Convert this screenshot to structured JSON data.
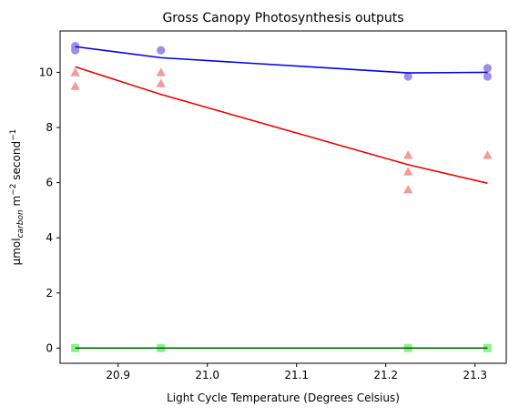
{
  "chart_data": {
    "type": "scatter",
    "title": "Gross Canopy Photosynthesis outputs",
    "xlabel": "Light Cycle Temperature (Degrees Celsius)",
    "ylabel": {
      "prefix": "μmol",
      "sub": "carbon",
      "middle": " m",
      "sup1": "−2",
      "middle2": " second",
      "sup2": "−1"
    },
    "xlim": [
      20.835,
      21.335
    ],
    "ylim": [
      -0.55,
      11.5
    ],
    "xticks": [
      20.9,
      21.0,
      21.1,
      21.2,
      21.3
    ],
    "xtick_labels": [
      "20.9",
      "21.0",
      "21.1",
      "21.2",
      "21.3"
    ],
    "yticks": [
      0,
      2,
      4,
      6,
      8,
      10
    ],
    "ytick_labels": [
      "0",
      "2",
      "4",
      "6",
      "8",
      "10"
    ],
    "grid": false,
    "legend": false,
    "series": [
      {
        "color_points": "#9b8fe8",
        "color_line": "#0000ee",
        "marker": "circle",
        "points": [
          {
            "x": 20.852,
            "y": 10.95
          },
          {
            "x": 20.852,
            "y": 10.8
          },
          {
            "x": 20.948,
            "y": 10.8
          },
          {
            "x": 21.225,
            "y": 9.85
          },
          {
            "x": 21.314,
            "y": 10.15
          },
          {
            "x": 21.314,
            "y": 9.85
          }
        ],
        "line": [
          {
            "x": 20.852,
            "y": 10.93
          },
          {
            "x": 20.948,
            "y": 10.53
          },
          {
            "x": 21.225,
            "y": 9.98
          },
          {
            "x": 21.314,
            "y": 10.0
          }
        ]
      },
      {
        "color_points": "#f59a9a",
        "color_line": "#ee0000",
        "marker": "triangle",
        "points": [
          {
            "x": 20.852,
            "y": 10.0
          },
          {
            "x": 20.852,
            "y": 9.5
          },
          {
            "x": 20.948,
            "y": 10.0
          },
          {
            "x": 20.948,
            "y": 9.6
          },
          {
            "x": 21.225,
            "y": 7.0
          },
          {
            "x": 21.225,
            "y": 6.4
          },
          {
            "x": 21.225,
            "y": 5.75
          },
          {
            "x": 21.314,
            "y": 7.0
          }
        ],
        "line": [
          {
            "x": 20.852,
            "y": 10.2
          },
          {
            "x": 20.948,
            "y": 9.2
          },
          {
            "x": 21.225,
            "y": 6.65
          },
          {
            "x": 21.314,
            "y": 5.98
          }
        ]
      },
      {
        "color_points": "#8fef8f",
        "color_line": "#006400",
        "marker": "square",
        "points": [
          {
            "x": 20.852,
            "y": 0.0
          },
          {
            "x": 20.948,
            "y": 0.0
          },
          {
            "x": 21.225,
            "y": 0.0
          },
          {
            "x": 21.314,
            "y": 0.0
          }
        ],
        "line": [
          {
            "x": 20.852,
            "y": 0.0
          },
          {
            "x": 20.948,
            "y": 0.0
          },
          {
            "x": 21.225,
            "y": 0.0
          },
          {
            "x": 21.314,
            "y": 0.0
          }
        ]
      }
    ]
  }
}
